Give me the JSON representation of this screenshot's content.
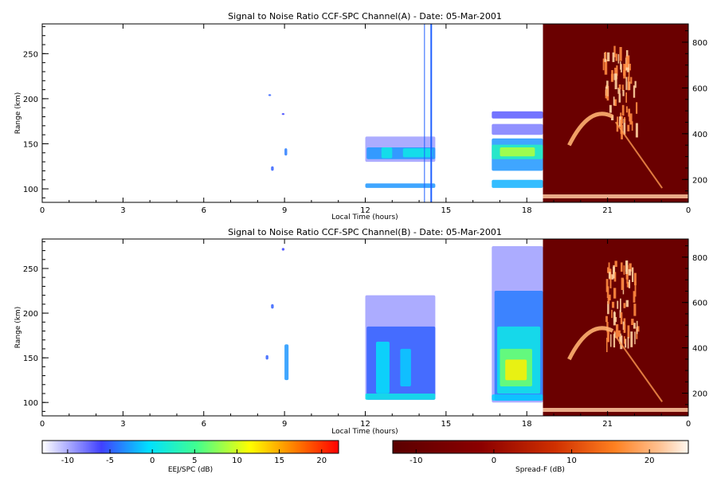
{
  "chart_data": [
    {
      "type": "heatmap",
      "title": "Signal to Noise Ratio CCF-SPC Channel(A) - Date: 05-Mar-2001",
      "xlabel": "Local Time (hours)",
      "ylabel": "Range (km)",
      "xlim": [
        0,
        24
      ],
      "ylim": [
        85,
        283
      ],
      "xticks": [
        "0",
        "3",
        "6",
        "9",
        "12",
        "15",
        "18",
        "21",
        "0"
      ],
      "yticks": [
        100,
        150,
        200,
        250
      ],
      "right_axis_ticks": [
        200,
        400,
        600,
        800
      ],
      "right_axis_range": [
        100,
        880
      ],
      "spreadf_region_start": 18.6,
      "markers": [
        14.2,
        14.45
      ],
      "echo_blocks": [
        {
          "t0": 8.4,
          "t1": 8.5,
          "r0": 203,
          "r1": 205,
          "snr": -6
        },
        {
          "t0": 8.9,
          "t1": 9.0,
          "r0": 182,
          "r1": 184,
          "snr": -7
        },
        {
          "t0": 9.0,
          "t1": 9.1,
          "r0": 137,
          "r1": 145,
          "snr": -5
        },
        {
          "t0": 8.5,
          "t1": 8.6,
          "r0": 120,
          "r1": 125,
          "snr": -6
        },
        {
          "t0": 12.0,
          "t1": 14.6,
          "r0": 130,
          "r1": 158,
          "snr": -10
        },
        {
          "t0": 12.05,
          "t1": 14.6,
          "r0": 133,
          "r1": 146,
          "snr": -4
        },
        {
          "t0": 12.6,
          "t1": 13.0,
          "r0": 134,
          "r1": 146,
          "snr": 0
        },
        {
          "t0": 13.4,
          "t1": 14.5,
          "r0": 135,
          "r1": 145,
          "snr": 0
        },
        {
          "t0": 12.0,
          "t1": 14.6,
          "r0": 101,
          "r1": 106,
          "snr": -4
        },
        {
          "t0": 16.7,
          "t1": 18.6,
          "r0": 178,
          "r1": 186,
          "snr": -8
        },
        {
          "t0": 16.7,
          "t1": 18.6,
          "r0": 160,
          "r1": 172,
          "snr": -9
        },
        {
          "t0": 16.7,
          "t1": 18.6,
          "r0": 120,
          "r1": 156,
          "snr": -4
        },
        {
          "t0": 16.7,
          "t1": 18.6,
          "r0": 133,
          "r1": 149,
          "snr": 2
        },
        {
          "t0": 17.0,
          "t1": 18.3,
          "r0": 136,
          "r1": 146,
          "snr": 8
        },
        {
          "t0": 16.7,
          "t1": 18.6,
          "r0": 101,
          "r1": 110,
          "snr": -3
        }
      ]
    },
    {
      "type": "heatmap",
      "title": "Signal to Noise Ratio CCF-SPC Channel(B) - Date: 05-Mar-2001",
      "xlabel": "Local Time (hours)",
      "ylabel": "Range (km)",
      "xlim": [
        0,
        24
      ],
      "ylim": [
        85,
        283
      ],
      "xticks": [
        "0",
        "3",
        "6",
        "9",
        "12",
        "15",
        "18",
        "21",
        "0"
      ],
      "yticks": [
        100,
        150,
        200,
        250
      ],
      "right_axis_ticks": [
        200,
        400,
        600,
        800
      ],
      "right_axis_range": [
        100,
        880
      ],
      "spreadf_region_start": 18.6,
      "echo_blocks": [
        {
          "t0": 8.9,
          "t1": 9.0,
          "r0": 270,
          "r1": 273,
          "snr": -7
        },
        {
          "t0": 8.5,
          "t1": 8.6,
          "r0": 205,
          "r1": 210,
          "snr": -6
        },
        {
          "t0": 9.0,
          "t1": 9.15,
          "r0": 125,
          "r1": 165,
          "snr": -4
        },
        {
          "t0": 8.3,
          "t1": 8.4,
          "r0": 148,
          "r1": 153,
          "snr": -6
        },
        {
          "t0": 12.0,
          "t1": 14.6,
          "r0": 103,
          "r1": 220,
          "snr": -10
        },
        {
          "t0": 12.05,
          "t1": 14.6,
          "r0": 103,
          "r1": 185,
          "snr": -6
        },
        {
          "t0": 12.4,
          "t1": 12.9,
          "r0": 110,
          "r1": 168,
          "snr": -1
        },
        {
          "t0": 13.3,
          "t1": 13.7,
          "r0": 118,
          "r1": 160,
          "snr": -2
        },
        {
          "t0": 12.0,
          "t1": 14.6,
          "r0": 103,
          "r1": 110,
          "snr": 0
        },
        {
          "t0": 16.7,
          "t1": 18.6,
          "r0": 100,
          "r1": 275,
          "snr": -10
        },
        {
          "t0": 16.8,
          "t1": 18.6,
          "r0": 102,
          "r1": 225,
          "snr": -5
        },
        {
          "t0": 16.9,
          "t1": 18.5,
          "r0": 110,
          "r1": 185,
          "snr": 0
        },
        {
          "t0": 17.0,
          "t1": 18.2,
          "r0": 118,
          "r1": 160,
          "snr": 6
        },
        {
          "t0": 17.2,
          "t1": 18.0,
          "r0": 125,
          "r1": 148,
          "snr": 11
        },
        {
          "t0": 16.7,
          "t1": 18.6,
          "r0": 102,
          "r1": 109,
          "snr": -2
        }
      ]
    }
  ],
  "colorbars": {
    "ejj": {
      "label": "EEJ/SPC (dB)",
      "range": [
        -13,
        22
      ],
      "ticks": [
        "-10",
        "-5",
        "0",
        "5",
        "10",
        "15",
        "20"
      ],
      "tick_values": [
        -10,
        -5,
        0,
        5,
        10,
        15,
        20
      ],
      "colors": [
        "#ffffff",
        "#4040ff",
        "#00e0ff",
        "#40ff90",
        "#ffff00",
        "#ff8000",
        "#ff0000"
      ]
    },
    "spreadf": {
      "label": "Spread-F (dB)",
      "range": [
        -13,
        25
      ],
      "ticks": [
        "-10",
        "0",
        "10",
        "20"
      ],
      "tick_values": [
        -10,
        0,
        10,
        20
      ],
      "colors": [
        "#5a0000",
        "#8c0000",
        "#d03000",
        "#ff8020",
        "#ffc090",
        "#fff8f0"
      ]
    }
  }
}
